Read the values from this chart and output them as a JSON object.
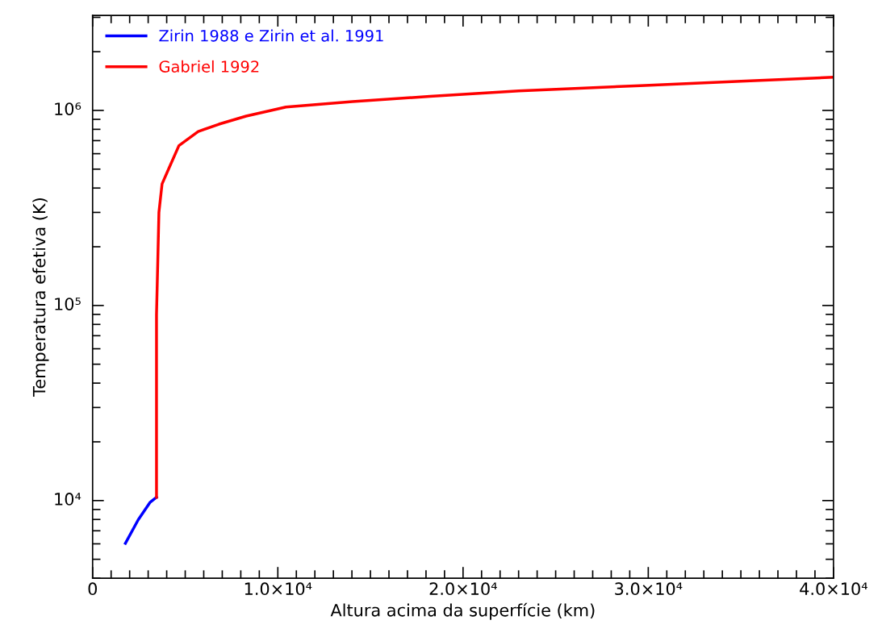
{
  "chart_data": {
    "type": "line",
    "xlabel": "Altura acima da superfície (km)",
    "ylabel": "Temperatura efetiva (K)",
    "log": "y",
    "xlim": [
      0,
      40000
    ],
    "ylim": [
      4000,
      3070000
    ],
    "xticks": [
      {
        "value": 0,
        "label": "0"
      },
      {
        "value": 10000,
        "label": "1.0×10⁴"
      },
      {
        "value": 20000,
        "label": "2.0×10⁴"
      },
      {
        "value": 30000,
        "label": "3.0×10⁴"
      },
      {
        "value": 40000,
        "label": "4.0×10⁴"
      }
    ],
    "yticks": [
      {
        "value": 10000,
        "label": "10⁴"
      },
      {
        "value": 100000,
        "label": "10⁵"
      },
      {
        "value": 1000000,
        "label": "10⁶"
      }
    ],
    "grid": false,
    "legend": "top left",
    "marker": "none",
    "line_style": "solid",
    "series": [
      {
        "name": "Zirin 1988 e Zirin et al. 1991",
        "color": "#0000ff",
        "x": [
          1770,
          2460,
          3110,
          3450
        ],
        "values": [
          6040,
          7960,
          9810,
          10400
        ]
      },
      {
        "name": "Gabriel 1992",
        "color": "#ff0000",
        "x": [
          3450,
          3450,
          3520,
          3580,
          3750,
          4100,
          4660,
          5700,
          6820,
          8290,
          10440,
          14030,
          18210,
          23000,
          29560,
          35000,
          40000
        ],
        "values": [
          10400,
          90000,
          170000,
          300000,
          420000,
          500000,
          660000,
          780000,
          850000,
          935000,
          1040000,
          1110000,
          1180000,
          1260000,
          1340000,
          1410000,
          1480000
        ]
      }
    ]
  }
}
